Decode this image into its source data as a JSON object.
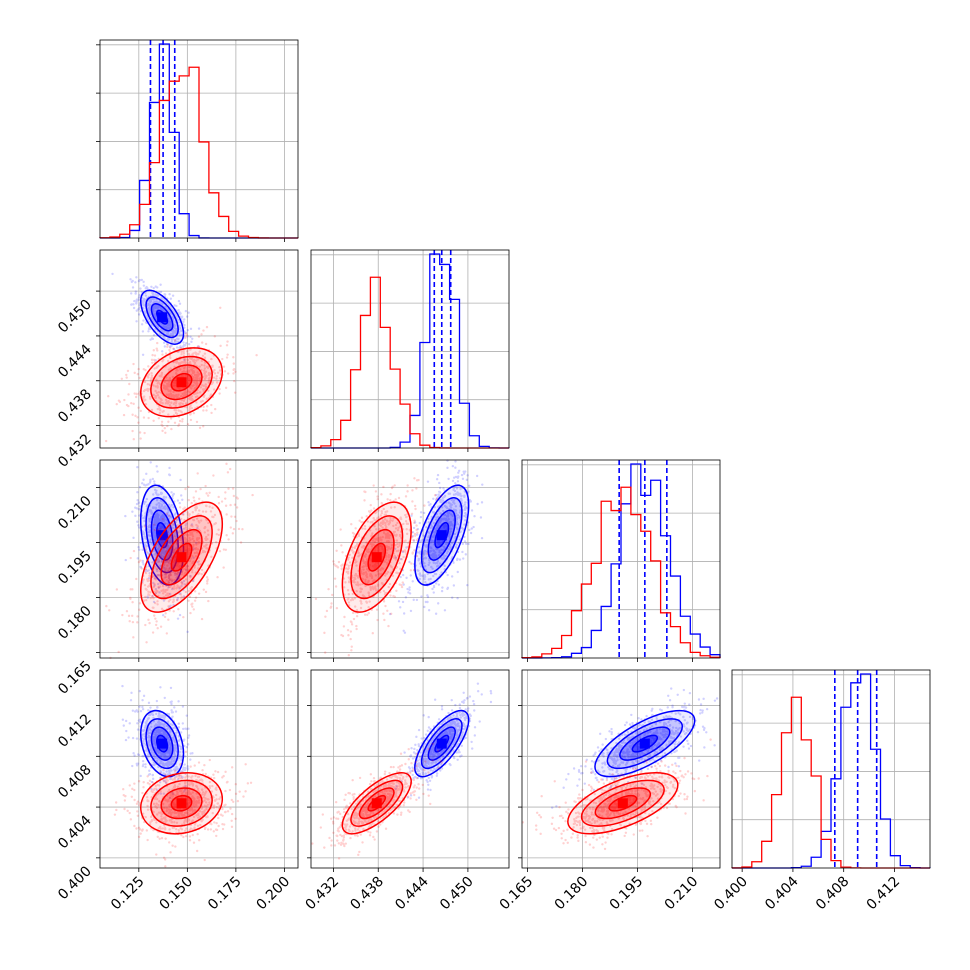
{
  "chart_data": {
    "type": "corner",
    "grid": true,
    "colors": {
      "series_a": "#0000ff",
      "series_b": "#ff0000"
    },
    "parameters": [
      {
        "range": [
          0.105,
          0.207
        ],
        "ticks": [
          "0.125",
          "0.150",
          "0.175",
          "0.200"
        ]
      },
      {
        "range": [
          0.429,
          0.4555
        ],
        "ticks": [
          "0.432",
          "0.438",
          "0.444",
          "0.450"
        ]
      },
      {
        "range": [
          0.1635,
          0.2175
        ],
        "ticks": [
          "0.165",
          "0.180",
          "0.195",
          "0.210"
        ]
      },
      {
        "range": [
          0.3992,
          0.4148
        ],
        "ticks": [
          "0.400",
          "0.404",
          "0.408",
          "0.412"
        ]
      }
    ],
    "series": [
      {
        "color": "#0000ff",
        "mean": [
          0.137,
          0.4465,
          0.197,
          0.409
        ],
        "std": [
          0.0055,
          0.0018,
          0.0068,
          0.0013
        ],
        "quantiles": [
          [
            0.131,
            0.1375,
            0.1435
          ],
          [
            0.4455,
            0.4465,
            0.4477
          ],
          [
            0.19,
            0.197,
            0.203
          ],
          [
            0.4073,
            0.4091,
            0.4106
          ]
        ],
        "hist_scale": 1.0
      },
      {
        "color": "#ff0000",
        "mean": [
          0.147,
          0.4378,
          0.191,
          0.4043
        ],
        "std": [
          0.0105,
          0.0023,
          0.0075,
          0.0012
        ],
        "hist_scale": 0.88
      }
    ],
    "pair_correlation": {
      "series_a": {
        "1-0": -0.6,
        "2-0": -0.3,
        "2-1": 0.6,
        "3-0": -0.3,
        "3-1": 0.72,
        "3-2": 0.7
      },
      "series_b": {
        "1-0": 0.3,
        "2-0": 0.6,
        "2-1": 0.5,
        "3-0": 0.15,
        "3-1": 0.72,
        "3-2": 0.6
      }
    }
  }
}
